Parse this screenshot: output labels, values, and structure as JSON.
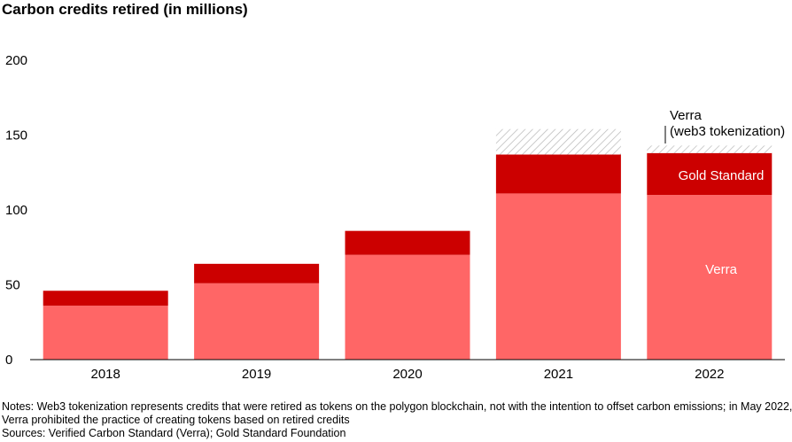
{
  "chart_data": {
    "type": "bar",
    "title": "Carbon credits retired (in millions)",
    "xlabel": "",
    "ylabel": "",
    "categories": [
      "2018",
      "2019",
      "2020",
      "2021",
      "2022"
    ],
    "series": [
      {
        "name": "Verra",
        "values": [
          36,
          51,
          70,
          111,
          110
        ],
        "color": "#ff6666"
      },
      {
        "name": "Gold Standard",
        "values": [
          10,
          13,
          16,
          26,
          28
        ],
        "color": "#cc0000"
      },
      {
        "name": "Verra (web3 tokenization)",
        "values": [
          0,
          0,
          0,
          17,
          5
        ],
        "pattern": "diagonal-hatch"
      }
    ],
    "ylim": [
      0,
      200
    ],
    "yticks": [
      0,
      50,
      100,
      150,
      200
    ],
    "grid": false,
    "legend": "none",
    "annotations": {
      "verra_label": "Verra",
      "gold_label": "Gold Standard",
      "web3_line1": "Verra",
      "web3_line2": "(web3 tokenization)"
    }
  },
  "notes": {
    "line1": "Notes: Web3 tokenization represents credits that were retired as tokens on the polygon blockchain, not with the intention to offset carbon emissions; in May 2022,",
    "line2": "Verra prohibited the practice of creating tokens based on retired credits",
    "sources": "Sources: Verified Carbon Standard (Verra); Gold Standard Foundation"
  }
}
